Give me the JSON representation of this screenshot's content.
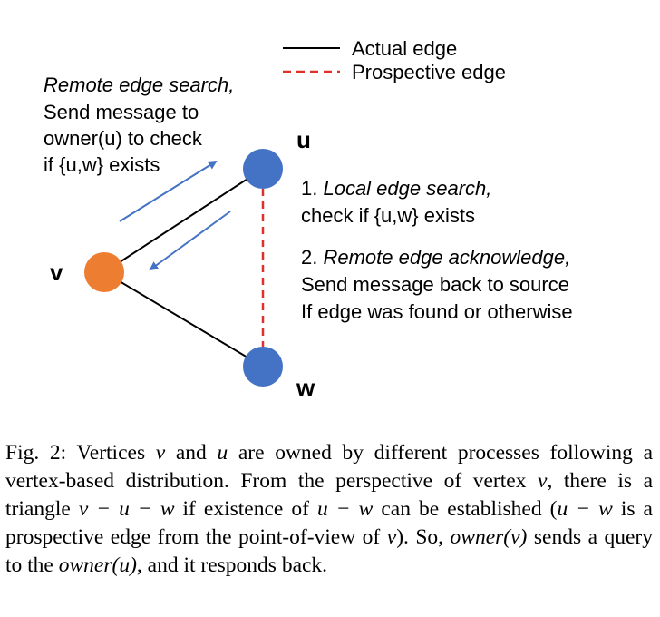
{
  "legend": {
    "actual_edge": "Actual edge",
    "prospective_edge": "Prospective edge"
  },
  "colors": {
    "vertex_v": "#ED7D31",
    "vertex_uw": "#4472C4",
    "arrow": "#4472C4",
    "prospective_edge": "#E0302A",
    "actual_edge": "#000000"
  },
  "vertices": {
    "u": "u",
    "v": "v",
    "w": "w"
  },
  "notes": {
    "remote_search": {
      "line1": "Remote edge search,",
      "line2": "Send message to",
      "line3": "owner(u) to check",
      "line4": "if {u,w} exists"
    },
    "local_search": {
      "number": "1. ",
      "title": "Local edge search,",
      "line2": "check if {u,w} exists"
    },
    "remote_ack": {
      "number": "2. ",
      "title": "Remote edge acknowledge,",
      "line2": "Send message back to source",
      "line3": "If edge was found or otherwise"
    }
  },
  "caption": {
    "prefix": "Fig. 2: Vertices ",
    "v1": "v",
    "t1": " and ",
    "u1": "u",
    "t2": " are owned by different processes following a vertex-based distribution. From the perspective of vertex ",
    "v2": "v",
    "t3": ", there is a triangle ",
    "tri": "v − u − w",
    "t4": " if existence of ",
    "uw1": "u − w",
    "t5": " can be established (",
    "uw2": "u − w",
    "t6": " is a prospective edge from the point-of-view of ",
    "v3": "v",
    "t7": "). So, ",
    "ownerv": "owner(v)",
    "t8": " sends a query to the ",
    "owneru": "owner(u)",
    "t9": ", and it responds back."
  }
}
